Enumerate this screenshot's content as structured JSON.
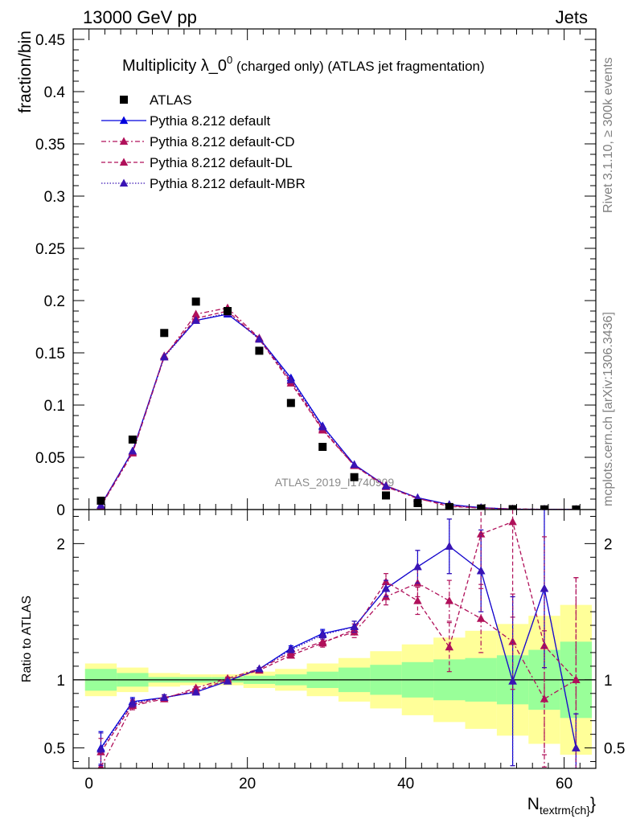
{
  "header": {
    "energy_label": "13000 GeV pp",
    "category": "Jets",
    "side_label_rivet": "Rivet 3.1.10, ≥ 300k events",
    "side_label_mcplots": "mcplots.cern.ch [arXiv:1306.3436]",
    "analysis_id": "ATLAS_2019_I1740909"
  },
  "colors": {
    "atlas": "#000000",
    "default": "#0000dd",
    "cd": "#b0105a",
    "dl": "#b0105a",
    "mbr": "#3a14b4",
    "band_inner": "#99ff99",
    "band_outer": "#ffff99"
  },
  "chart_data": [
    {
      "type": "scatter",
      "title_main": "Multiplicity λ_0",
      "title_sup": "0",
      "title_rest": " (charged only) (ATLAS jet fragmentation)",
      "ylabel": "fraction/bin",
      "xlabel": "N",
      "xlabel_sub": "textrm{ch}",
      "xlabel_suffix": "}",
      "xlim": [
        -2,
        64
      ],
      "ylim": [
        0,
        0.46
      ],
      "y_ticks": [
        0,
        0.05,
        0.1,
        0.15,
        0.2,
        0.25,
        0.3,
        0.35,
        0.4,
        0.45
      ],
      "y_tick_labels": [
        "0",
        "0.05",
        "0.1",
        "0.15",
        "0.2",
        "0.25",
        "0.3",
        "0.35",
        "0.4",
        "0.45"
      ],
      "x": [
        1.5,
        5.5,
        9.5,
        13.5,
        17.5,
        21.5,
        25.5,
        29.5,
        33.5,
        37.5,
        41.5,
        45.5,
        49.5,
        53.5,
        57.5,
        61.5
      ],
      "legend": [
        "ATLAS",
        "Pythia 8.212 default",
        "Pythia 8.212 default-CD",
        "Pythia 8.212 default-DL",
        "Pythia 8.212 default-MBR"
      ],
      "series": [
        {
          "name": "ATLAS",
          "key": "atlas",
          "values": [
            0.0085,
            0.067,
            0.169,
            0.199,
            0.19,
            0.152,
            0.102,
            0.06,
            0.031,
            0.0135,
            0.0062,
            0.0024,
            0.001,
            0.0004,
            0.0002,
            0.0001
          ]
        },
        {
          "name": "Pythia 8.212 default",
          "key": "default",
          "values": [
            0.0042,
            0.056,
            0.147,
            0.181,
            0.187,
            0.164,
            0.126,
            0.08,
            0.043,
            0.0227,
            0.0113,
            0.0048,
            0.0018,
            0.0004,
            0.0003,
            0.0001
          ]
        },
        {
          "name": "Pythia 8.212 default-CD",
          "key": "cd",
          "values": [
            0.003,
            0.054,
            0.146,
            0.187,
            0.193,
            0.164,
            0.123,
            0.077,
            0.042,
            0.0218,
            0.0105,
            0.0038,
            0.0014,
            0.0005,
            0.0002,
            0.0001
          ]
        },
        {
          "name": "Pythia 8.212 default-DL",
          "key": "dl",
          "values": [
            0.004,
            0.055,
            0.147,
            0.183,
            0.19,
            0.163,
            0.121,
            0.076,
            0.042,
            0.023,
            0.011,
            0.0029,
            0.0015,
            0.0006,
            0.0002,
            0.0001
          ]
        },
        {
          "name": "Pythia 8.212 default-MBR",
          "key": "mbr",
          "values": [
            0.0041,
            0.056,
            0.146,
            0.181,
            0.188,
            0.163,
            0.124,
            0.079,
            0.043,
            0.0225,
            0.0112,
            0.0047,
            0.0018,
            0.0004,
            0.0003,
            0.0001
          ]
        }
      ]
    },
    {
      "type": "line",
      "ylabel": "Ratio to ATLAS",
      "xlim": [
        -2,
        64
      ],
      "ylim": [
        0.35,
        2.25
      ],
      "x_ticks": [
        0,
        20,
        40,
        60
      ],
      "x_tick_labels": [
        "0",
        "20",
        "40",
        "60"
      ],
      "y_ticks": [
        0.5,
        1,
        2
      ],
      "y_tick_labels": [
        "0.5",
        "1",
        "2"
      ],
      "reference": 1,
      "x": [
        1.5,
        5.5,
        9.5,
        13.5,
        17.5,
        21.5,
        25.5,
        29.5,
        33.5,
        37.5,
        41.5,
        45.5,
        49.5,
        53.5,
        57.5,
        61.5
      ],
      "bin_edges": [
        -0.5,
        3.5,
        7.5,
        11.5,
        15.5,
        19.5,
        23.5,
        27.5,
        31.5,
        35.5,
        39.5,
        43.5,
        47.5,
        51.5,
        55.5,
        59.5,
        63.5
      ],
      "band_inner": [
        [
          0.92,
          1.08
        ],
        [
          0.95,
          1.05
        ],
        [
          0.98,
          1.02
        ],
        [
          0.98,
          1.02
        ],
        [
          0.98,
          1.02
        ],
        [
          0.97,
          1.03
        ],
        [
          0.96,
          1.04
        ],
        [
          0.94,
          1.06
        ],
        [
          0.91,
          1.09
        ],
        [
          0.89,
          1.11
        ],
        [
          0.87,
          1.13
        ],
        [
          0.85,
          1.15
        ],
        [
          0.84,
          1.16
        ],
        [
          0.82,
          1.18
        ],
        [
          0.78,
          1.22
        ],
        [
          0.72,
          1.28
        ]
      ],
      "band_outer": [
        [
          0.88,
          1.12
        ],
        [
          0.91,
          1.09
        ],
        [
          0.95,
          1.05
        ],
        [
          0.96,
          1.04
        ],
        [
          0.96,
          1.04
        ],
        [
          0.94,
          1.06
        ],
        [
          0.92,
          1.08
        ],
        [
          0.88,
          1.12
        ],
        [
          0.84,
          1.16
        ],
        [
          0.79,
          1.21
        ],
        [
          0.74,
          1.26
        ],
        [
          0.69,
          1.31
        ],
        [
          0.64,
          1.36
        ],
        [
          0.59,
          1.41
        ],
        [
          0.53,
          1.47
        ],
        [
          0.45,
          1.55
        ]
      ],
      "series": [
        {
          "name": "Pythia 8.212 default",
          "key": "default",
          "dash": "",
          "values": [
            0.5,
            0.84,
            0.87,
            0.91,
            0.99,
            1.08,
            1.23,
            1.34,
            1.39,
            1.67,
            1.83,
            1.98,
            1.8,
            0.99,
            1.67,
            0.5
          ],
          "err": [
            0.12,
            0.03,
            0.02,
            0.01,
            0.01,
            0.01,
            0.02,
            0.03,
            0.04,
            0.06,
            0.12,
            0.2,
            0.3,
            0.62,
            0.58,
            0.25
          ]
        },
        {
          "name": "Pythia 8.212 default-CD",
          "key": "cd",
          "dash": "6 3 2 3",
          "values": [
            0.36,
            0.81,
            0.86,
            0.94,
            1.01,
            1.08,
            1.2,
            1.28,
            1.35,
            1.61,
            1.71,
            1.58,
            1.45,
            1.28,
            0.86,
            1.0
          ],
          "err": [
            0.1,
            0.03,
            0.02,
            0.01,
            0.01,
            0.01,
            0.02,
            0.03,
            0.04,
            0.06,
            0.1,
            0.15,
            0.25,
            0.35,
            0.5,
            0.75
          ]
        },
        {
          "name": "Pythia 8.212 default-DL",
          "key": "dl",
          "dash": "5 3",
          "values": [
            0.47,
            0.82,
            0.87,
            0.92,
            1.0,
            1.07,
            1.18,
            1.27,
            1.37,
            1.72,
            1.58,
            1.24,
            2.07,
            2.16,
            1.25,
            1.0
          ],
          "err": [
            0.1,
            0.03,
            0.02,
            0.01,
            0.01,
            0.01,
            0.02,
            0.03,
            0.04,
            0.06,
            0.1,
            0.18,
            0.4,
            0.7,
            0.8,
            0.75
          ]
        },
        {
          "name": "Pythia 8.212 default-MBR",
          "key": "mbr",
          "dash": "1.5 2",
          "values": [
            0.49,
            0.83,
            0.87,
            0.91,
            0.99,
            1.08,
            1.22,
            1.33,
            1.39,
            1.67,
            1.83,
            1.98,
            1.8,
            0.99,
            1.67,
            0.5
          ],
          "err": [
            0.12,
            0.03,
            0.02,
            0.01,
            0.01,
            0.01,
            0.02,
            0.03,
            0.04,
            0.06,
            0.12,
            0.2,
            0.3,
            0.62,
            0.58,
            0.25
          ]
        }
      ]
    }
  ]
}
